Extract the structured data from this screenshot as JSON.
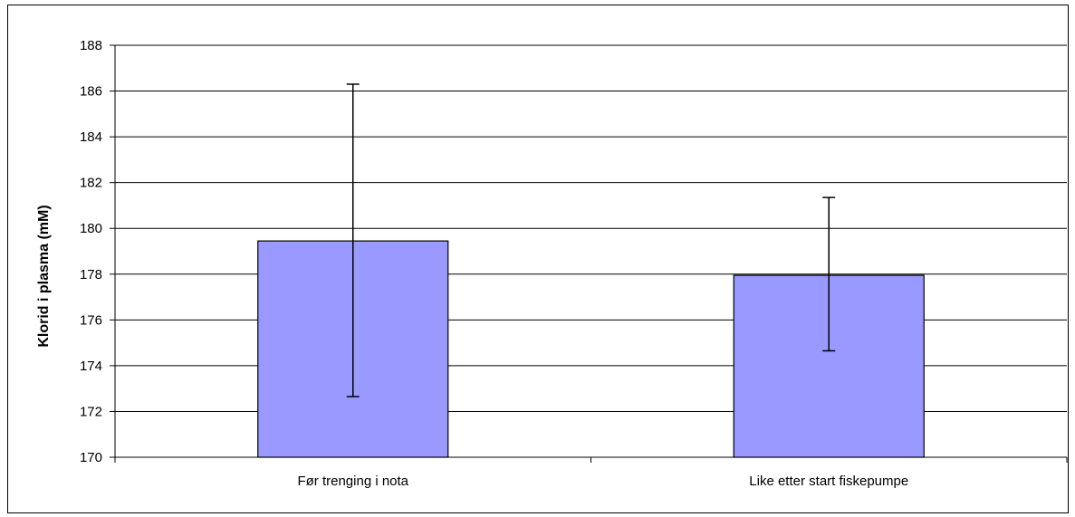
{
  "chart_data": {
    "type": "bar",
    "title": "",
    "xlabel": "",
    "ylabel": "Klorid i plasma (mM)",
    "ylim": [
      170,
      188
    ],
    "ytick_step": 2,
    "yticks": [
      "170",
      "172",
      "174",
      "176",
      "178",
      "180",
      "182",
      "184",
      "186",
      "188"
    ],
    "grid": true,
    "legend": "none",
    "bar_color": "#9999ff",
    "categories": [
      "Før trenging i nota",
      "Like etter start fiskepumpe"
    ],
    "values": [
      179.45,
      177.95
    ],
    "error_upper": [
      186.3,
      181.35
    ],
    "error_lower": [
      172.65,
      174.65
    ]
  }
}
